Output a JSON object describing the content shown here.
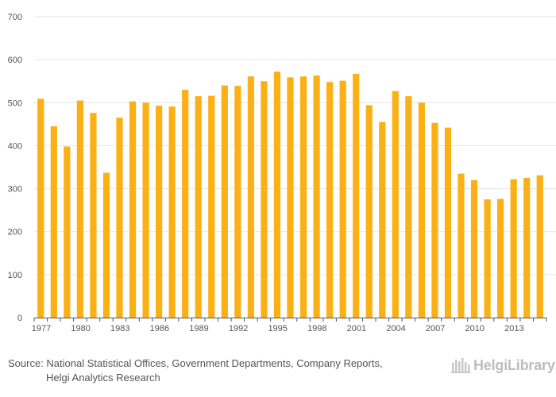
{
  "chart_data": {
    "type": "bar",
    "title": "",
    "xlabel": "",
    "ylabel": "",
    "ylim": [
      0,
      700
    ],
    "yticks": [
      0,
      100,
      200,
      300,
      400,
      500,
      600,
      700
    ],
    "categories": [
      "1977",
      "1978",
      "1979",
      "1980",
      "1981",
      "1982",
      "1983",
      "1984",
      "1985",
      "1986",
      "1987",
      "1988",
      "1989",
      "1990",
      "1991",
      "1992",
      "1993",
      "1994",
      "1995",
      "1996",
      "1997",
      "1998",
      "1999",
      "2000",
      "2001",
      "2002",
      "2003",
      "2004",
      "2005",
      "2006",
      "2007",
      "2008",
      "2009",
      "2010",
      "2011",
      "2012",
      "2013",
      "2014",
      "2015"
    ],
    "xtick_labels": [
      "1977",
      "1980",
      "1983",
      "1986",
      "1989",
      "1992",
      "1995",
      "1998",
      "2001",
      "2004",
      "2007",
      "2010",
      "2013"
    ],
    "values": [
      509,
      445,
      398,
      505,
      476,
      337,
      465,
      503,
      500,
      493,
      491,
      530,
      515,
      516,
      540,
      539,
      561,
      550,
      572,
      559,
      561,
      563,
      548,
      551,
      567,
      494,
      455,
      527,
      515,
      500,
      453,
      442,
      335,
      320,
      275,
      276,
      322,
      325,
      331
    ],
    "grid": true,
    "legend": "none",
    "bar_color": "#fbb016",
    "grid_color": "#e6e6e6",
    "axis_color": "#555555"
  },
  "footer": {
    "source_line1": "Source: National Statistical Offices, Government Departments, Company Reports,",
    "source_line2": "Helgi Analytics Research",
    "brand_name": "HelgiLibrary",
    "brand_suffix": ".",
    "brand_icon": "library-icon"
  }
}
